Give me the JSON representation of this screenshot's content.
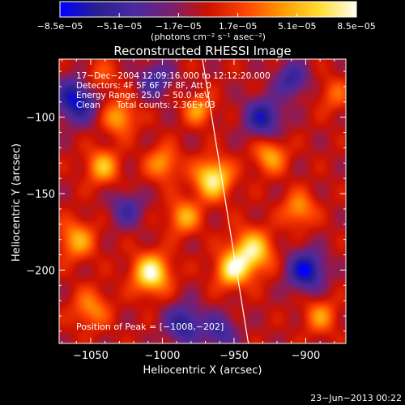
{
  "chart_data": {
    "type": "heatmap",
    "title": "Reconstructed RHESSI Image",
    "xlabel": "Heliocentric X (arcsec)",
    "ylabel": "Heliocentric Y (arcsec)",
    "xlim": [
      -1072,
      -872
    ],
    "ylim": [
      -248,
      -62
    ],
    "x_ticks": [
      -1050,
      -1000,
      -950,
      -900
    ],
    "x_tick_labels": [
      "−1050",
      "−1000",
      "−950",
      "−900"
    ],
    "y_ticks": [
      -100,
      -150,
      -200
    ],
    "y_tick_labels": [
      "−100",
      "−150",
      "−200"
    ],
    "colorbar": {
      "range": [
        -8.5e-05,
        8.5e-05
      ],
      "ticks": [
        -8.5e-05,
        -5.1e-05,
        -1.7e-05,
        1.7e-05,
        5.1e-05,
        8.5e-05
      ],
      "tick_labels": [
        "−8.5e−05",
        "−5.1e−05",
        "−1.7e−05",
        "1.7e−05",
        "5.1e−05",
        "8.5e−05"
      ],
      "unit_label": "(photons cm⁻² s⁻¹ asec⁻²)",
      "colormap": [
        "#0000ff",
        "#2a1f8f",
        "#4a2aa0",
        "#7a1f6f",
        "#cc1100",
        "#ff4400",
        "#ff9900",
        "#ffdd33",
        "#ffffee"
      ]
    },
    "info_lines": [
      "17−Dec−2004 12:09:16.000 to 12:12:20.000",
      "Detectors: 4F 5F 6F 7F 8F, Att 0",
      "Energy Range: 25.0 − 50.0 keV",
      "Clean      Total counts: 2.36E+03"
    ],
    "peak_label": "Position of Peak = [−1008,−202]",
    "peak_position": [
      -1008,
      -202
    ],
    "limb_line": [
      [
        -972,
        -62
      ],
      [
        -940,
        -248
      ]
    ],
    "hot_spots": [
      {
        "x": -1008,
        "y": -202,
        "intensity": 1.0,
        "sigma": 9
      },
      {
        "x": -965,
        "y": -140,
        "intensity": 0.95,
        "sigma": 9
      },
      {
        "x": -938,
        "y": -188,
        "intensity": 0.9,
        "sigma": 10
      },
      {
        "x": -952,
        "y": -200,
        "intensity": 0.8,
        "sigma": 8
      },
      {
        "x": -1042,
        "y": -132,
        "intensity": 0.65,
        "sigma": 8
      },
      {
        "x": -1030,
        "y": -100,
        "intensity": 0.6,
        "sigma": 8
      },
      {
        "x": -1060,
        "y": -180,
        "intensity": 0.6,
        "sigma": 9
      },
      {
        "x": -975,
        "y": -95,
        "intensity": 0.55,
        "sigma": 7
      },
      {
        "x": -925,
        "y": -125,
        "intensity": 0.6,
        "sigma": 8
      },
      {
        "x": -905,
        "y": -160,
        "intensity": 0.55,
        "sigma": 8
      },
      {
        "x": -890,
        "y": -230,
        "intensity": 0.5,
        "sigma": 8
      },
      {
        "x": -985,
        "y": -165,
        "intensity": 0.6,
        "sigma": 8
      },
      {
        "x": -1050,
        "y": -225,
        "intensity": 0.5,
        "sigma": 9
      },
      {
        "x": -1000,
        "y": -130,
        "intensity": 0.55,
        "sigma": 8
      },
      {
        "x": -1045,
        "y": -75,
        "intensity": 0.35,
        "sigma": 9
      },
      {
        "x": -880,
        "y": -85,
        "intensity": 0.35,
        "sigma": 8
      }
    ],
    "cold_spots": [
      {
        "x": -1060,
        "y": -88,
        "intensity": -0.9,
        "sigma": 10
      },
      {
        "x": -900,
        "y": -200,
        "intensity": -0.9,
        "sigma": 9
      },
      {
        "x": -930,
        "y": -100,
        "intensity": -0.75,
        "sigma": 9
      },
      {
        "x": -985,
        "y": -235,
        "intensity": -0.7,
        "sigma": 9
      },
      {
        "x": -910,
        "y": -75,
        "intensity": -0.6,
        "sigma": 8
      },
      {
        "x": -1005,
        "y": -75,
        "intensity": -0.55,
        "sigma": 8
      },
      {
        "x": -960,
        "y": -240,
        "intensity": -0.55,
        "sigma": 8
      },
      {
        "x": -1025,
        "y": -160,
        "intensity": -0.5,
        "sigma": 8
      }
    ]
  },
  "footer": {
    "timestamp": "23−Jun−2013 00:22"
  }
}
